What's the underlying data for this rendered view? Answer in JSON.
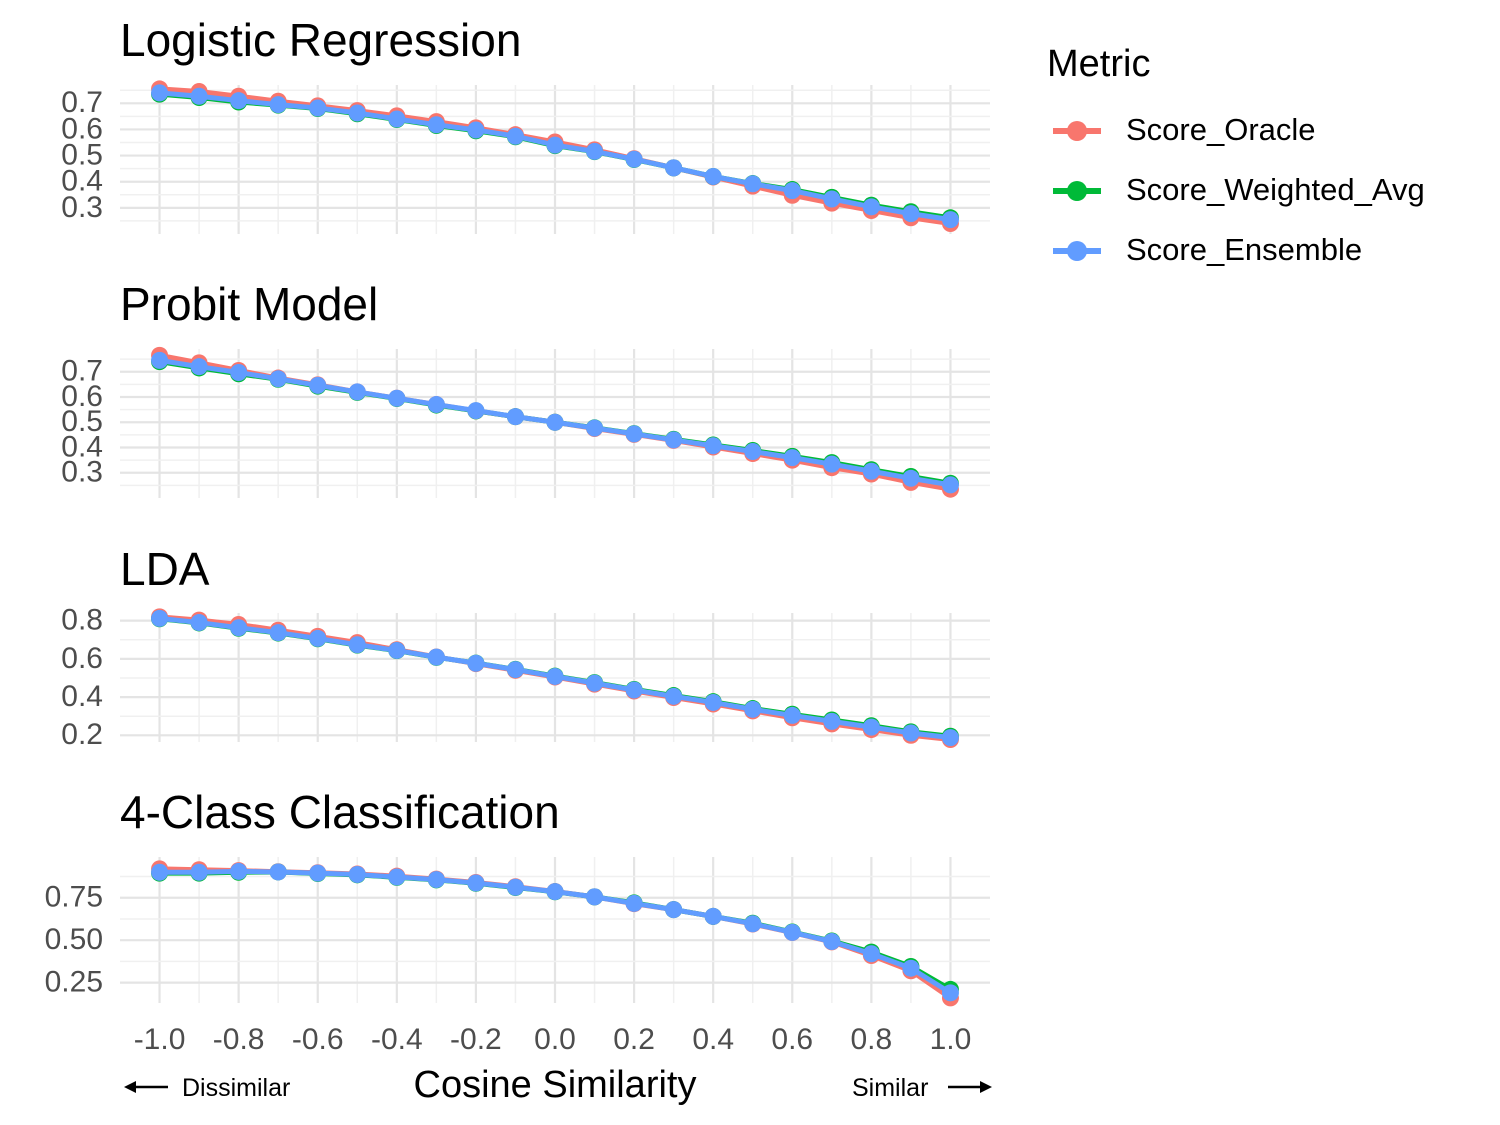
{
  "chart_data": {
    "type": "line",
    "xlabel": "Cosine Similarity",
    "x": [
      -1.0,
      -0.9,
      -0.8,
      -0.7,
      -0.6,
      -0.5,
      -0.4,
      -0.3,
      -0.2,
      -0.1,
      0.0,
      0.1,
      0.2,
      0.3,
      0.4,
      0.5,
      0.6,
      0.7,
      0.8,
      0.9,
      1.0
    ],
    "x_ticks": [
      "-1.0",
      "-0.8",
      "-0.6",
      "-0.4",
      "-0.2",
      "0.0",
      "0.2",
      "0.4",
      "0.6",
      "0.8",
      "1.0"
    ],
    "x_range": [
      -1.1,
      1.1
    ],
    "left_annotation": "Dissimilar",
    "right_annotation": "Similar",
    "legend": {
      "title": "Metric",
      "entries": [
        {
          "name": "Score_Oracle",
          "color": "#F8766D"
        },
        {
          "name": "Score_Weighted_Avg",
          "color": "#00BA38"
        },
        {
          "name": "Score_Ensemble",
          "color": "#619CFF"
        }
      ]
    },
    "panels": [
      {
        "title": "Logistic Regression",
        "ylim": [
          0.2,
          0.77
        ],
        "y_ticks": [
          "0.3",
          "0.4",
          "0.5",
          "0.6",
          "0.7"
        ],
        "series": [
          {
            "name": "Score_Oracle",
            "color": "#F8766D",
            "values": [
              0.755,
              0.745,
              0.727,
              0.708,
              0.69,
              0.672,
              0.652,
              0.63,
              0.606,
              0.58,
              0.552,
              0.522,
              0.488,
              0.453,
              0.418,
              0.383,
              0.348,
              0.318,
              0.29,
              0.262,
              0.24
            ]
          },
          {
            "name": "Score_Weighted_Avg",
            "color": "#00BA38",
            "values": [
              0.735,
              0.722,
              0.705,
              0.693,
              0.68,
              0.66,
              0.638,
              0.615,
              0.595,
              0.572,
              0.538,
              0.515,
              0.485,
              0.453,
              0.42,
              0.393,
              0.37,
              0.34,
              0.31,
              0.285,
              0.262
            ]
          },
          {
            "name": "Score_Ensemble",
            "color": "#619CFF",
            "values": [
              0.74,
              0.727,
              0.71,
              0.695,
              0.682,
              0.663,
              0.64,
              0.618,
              0.598,
              0.574,
              0.54,
              0.516,
              0.486,
              0.453,
              0.42,
              0.392,
              0.366,
              0.334,
              0.304,
              0.278,
              0.255
            ]
          }
        ]
      },
      {
        "title": "Probit Model",
        "ylim": [
          0.2,
          0.79
        ],
        "y_ticks": [
          "0.3",
          "0.4",
          "0.5",
          "0.6",
          "0.7"
        ],
        "series": [
          {
            "name": "Score_Oracle",
            "color": "#F8766D",
            "values": [
              0.765,
              0.735,
              0.705,
              0.675,
              0.648,
              0.62,
              0.595,
              0.57,
              0.545,
              0.522,
              0.5,
              0.475,
              0.452,
              0.428,
              0.402,
              0.376,
              0.35,
              0.32,
              0.295,
              0.262,
              0.235
            ]
          },
          {
            "name": "Score_Weighted_Avg",
            "color": "#00BA38",
            "values": [
              0.74,
              0.715,
              0.692,
              0.67,
              0.643,
              0.618,
              0.594,
              0.568,
              0.545,
              0.522,
              0.5,
              0.478,
              0.455,
              0.432,
              0.41,
              0.388,
              0.365,
              0.34,
              0.312,
              0.285,
              0.258
            ]
          },
          {
            "name": "Score_Ensemble",
            "color": "#619CFF",
            "values": [
              0.745,
              0.72,
              0.697,
              0.672,
              0.646,
              0.62,
              0.595,
              0.57,
              0.546,
              0.522,
              0.5,
              0.477,
              0.454,
              0.43,
              0.407,
              0.384,
              0.36,
              0.334,
              0.306,
              0.278,
              0.252
            ]
          }
        ]
      },
      {
        "title": "LDA",
        "ylim": [
          0.165,
          0.84
        ],
        "y_ticks": [
          "0.2",
          "0.4",
          "0.6",
          "0.8"
        ],
        "series": [
          {
            "name": "Score_Oracle",
            "color": "#F8766D",
            "values": [
              0.82,
              0.803,
              0.78,
              0.75,
              0.718,
              0.685,
              0.648,
              0.61,
              0.575,
              0.54,
              0.505,
              0.468,
              0.432,
              0.398,
              0.364,
              0.328,
              0.292,
              0.26,
              0.23,
              0.2,
              0.178
            ]
          },
          {
            "name": "Score_Weighted_Avg",
            "color": "#00BA38",
            "values": [
              0.81,
              0.788,
              0.76,
              0.735,
              0.705,
              0.672,
              0.643,
              0.608,
              0.578,
              0.545,
              0.51,
              0.476,
              0.44,
              0.408,
              0.376,
              0.34,
              0.31,
              0.28,
              0.25,
              0.218,
              0.195
            ]
          },
          {
            "name": "Score_Ensemble",
            "color": "#619CFF",
            "values": [
              0.812,
              0.79,
              0.763,
              0.737,
              0.707,
              0.674,
              0.644,
              0.609,
              0.577,
              0.544,
              0.508,
              0.473,
              0.437,
              0.404,
              0.372,
              0.336,
              0.304,
              0.273,
              0.243,
              0.212,
              0.188
            ]
          }
        ]
      },
      {
        "title": "4-Class Classification",
        "ylim": [
          0.13,
          0.99
        ],
        "y_ticks": [
          "0.25",
          "0.50",
          "0.75"
        ],
        "series": [
          {
            "name": "Score_Oracle",
            "color": "#F8766D",
            "values": [
              0.92,
              0.915,
              0.91,
              0.903,
              0.897,
              0.89,
              0.877,
              0.86,
              0.84,
              0.815,
              0.787,
              0.755,
              0.715,
              0.68,
              0.64,
              0.595,
              0.545,
              0.49,
              0.41,
              0.32,
              0.16
            ]
          },
          {
            "name": "Score_Weighted_Avg",
            "color": "#00BA38",
            "values": [
              0.895,
              0.895,
              0.9,
              0.902,
              0.893,
              0.885,
              0.87,
              0.855,
              0.835,
              0.81,
              0.785,
              0.755,
              0.72,
              0.68,
              0.64,
              0.6,
              0.548,
              0.495,
              0.43,
              0.345,
              0.21
            ]
          },
          {
            "name": "Score_Ensemble",
            "color": "#619CFF",
            "values": [
              0.9,
              0.9,
              0.905,
              0.902,
              0.895,
              0.887,
              0.872,
              0.857,
              0.837,
              0.812,
              0.786,
              0.755,
              0.717,
              0.68,
              0.64,
              0.597,
              0.546,
              0.492,
              0.42,
              0.335,
              0.19
            ]
          }
        ]
      }
    ]
  }
}
